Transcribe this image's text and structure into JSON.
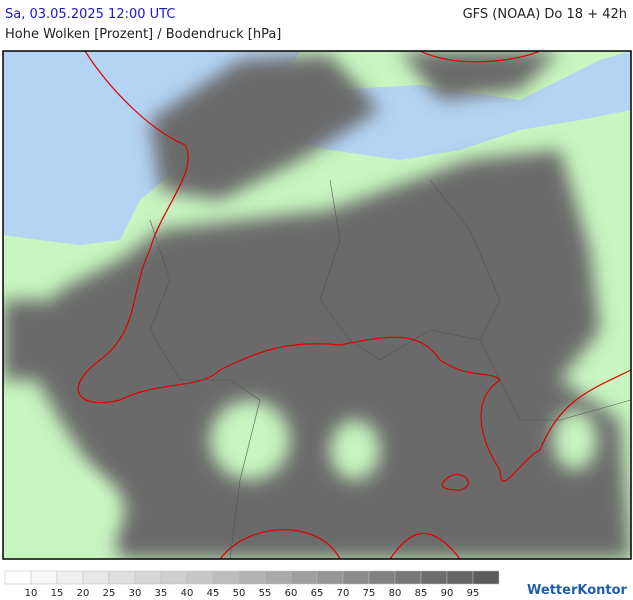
{
  "header": {
    "valid_time": "Sa, 03.05.2025 12:00 UTC",
    "model_run": "GFS (NOAA) Do 18 + 42h",
    "parameter": "Hohe Wolken [Prozent] / Bodendruck [hPa]"
  },
  "legend": {
    "labels": [
      10,
      15,
      20,
      25,
      30,
      35,
      40,
      45,
      50,
      55,
      60,
      65,
      70,
      75,
      80,
      85,
      90,
      95
    ],
    "colors": [
      "#ffffff",
      "#f7f7f7",
      "#efefef",
      "#e7e7e7",
      "#dfdfdf",
      "#d7d7d7",
      "#cfcfcf",
      "#c7c7c7",
      "#bdbdbd",
      "#b3b3b3",
      "#a9a9a9",
      "#9f9f9f",
      "#959595",
      "#8b8b8b",
      "#818181",
      "#777777",
      "#6d6d6d",
      "#646464",
      "#5c5c5c"
    ]
  },
  "brand": "WetterKontor"
}
